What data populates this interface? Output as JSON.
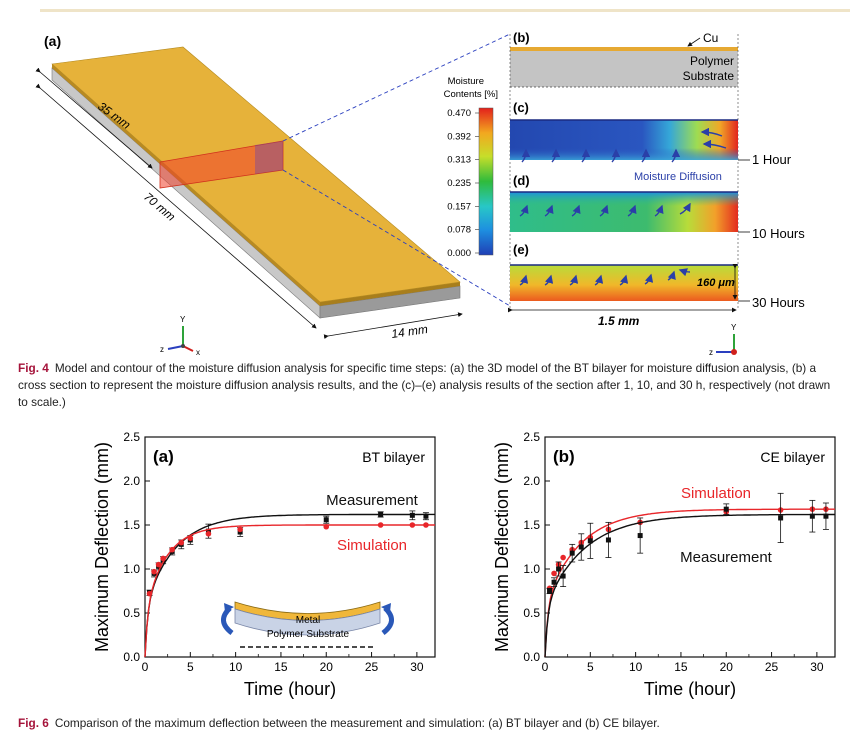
{
  "figure4": {
    "panel_a_label": "(a)",
    "panel_b_label": "(b)",
    "panel_c_label": "(c)",
    "panel_d_label": "(d)",
    "panel_e_label": "(e)",
    "dim_35": "35 mm",
    "dim_70": "70 mm",
    "dim_14": "14 mm",
    "dim_15": "1.5 mm",
    "dim_160": "160 μm",
    "cu_label": "Cu",
    "polymer_label_line1": "Polymer",
    "polymer_label_line2": "Substrate",
    "colorbar_title_line1": "Moisture",
    "colorbar_title_line2": "Contents [%]",
    "colorbar_ticks": [
      "0.470",
      "0.392",
      "0.313",
      "0.235",
      "0.157",
      "0.078",
      "0.000"
    ],
    "time_labels": [
      "1 Hour",
      "10 Hours",
      "30 Hours"
    ],
    "moisture_diffusion_label": "Moisture Diffusion",
    "axis_y": "Y",
    "axis_z": "z",
    "axis_x": "x",
    "caption_label": "Fig. 4",
    "caption_text": "Model and contour of the moisture diffusion analysis for specific time steps: (a) the 3D model of the BT bilayer for moisture diffusion analysis, (b) a cross section to represent the moisture diffusion analysis results, and the (c)–(e) analysis results of the section after 1, 10, and 30 h, respectively (not drawn to scale.)"
  },
  "figure6": {
    "caption_label": "Fig. 6",
    "caption_text": "Comparison of the maximum deflection between the measurement and simulation: (a) BT bilayer and (b) CE bilayer.",
    "inset_metal": "Metal",
    "inset_polymer": "Polymer Substrate"
  },
  "chart_data": [
    {
      "type": "line",
      "panel_label": "(a)",
      "title": "BT bilayer",
      "xlabel": "Time (hour)",
      "ylabel": "Maximum Deflection (mm)",
      "xlim": [
        0,
        32
      ],
      "ylim": [
        0,
        2.5
      ],
      "xticks": [
        0,
        5,
        10,
        15,
        20,
        25,
        30
      ],
      "yticks": [
        0.0,
        0.5,
        1.0,
        1.5,
        2.0,
        2.5
      ],
      "series": [
        {
          "name": "Measurement",
          "color": "#111111",
          "marker": "square",
          "x": [
            0.5,
            1,
            1.5,
            2,
            3,
            4,
            5,
            7,
            10.5,
            20,
            26,
            29.5,
            31
          ],
          "y": [
            0.73,
            0.95,
            1.03,
            1.1,
            1.2,
            1.28,
            1.33,
            1.43,
            1.42,
            1.56,
            1.62,
            1.61,
            1.6
          ],
          "err": [
            0.03,
            0.04,
            0.04,
            0.04,
            0.04,
            0.05,
            0.05,
            0.08,
            0.05,
            0.04,
            0.03,
            0.05,
            0.04
          ],
          "fit": {
            "a": 1.62,
            "k": 0.3
          }
        },
        {
          "name": "Simulation",
          "color": "#e8262a",
          "marker": "circle",
          "x": [
            0.5,
            1,
            1.5,
            2,
            3,
            4,
            5,
            7,
            10.5,
            20,
            26,
            29.5,
            31
          ],
          "y": [
            0.72,
            0.97,
            1.05,
            1.12,
            1.22,
            1.3,
            1.35,
            1.4,
            1.45,
            1.48,
            1.5,
            1.5,
            1.5
          ],
          "fit": {
            "a": 1.5,
            "k": 0.42
          }
        }
      ]
    },
    {
      "type": "line",
      "panel_label": "(b)",
      "title": "CE bilayer",
      "xlabel": "Time (hour)",
      "ylabel": "Maximum Deflection (mm)",
      "xlim": [
        0,
        32
      ],
      "ylim": [
        0,
        2.5
      ],
      "xticks": [
        0,
        5,
        10,
        15,
        20,
        25,
        30
      ],
      "yticks": [
        0.0,
        0.5,
        1.0,
        1.5,
        2.0,
        2.5
      ],
      "series": [
        {
          "name": "Simulation",
          "color": "#e8262a",
          "marker": "circle",
          "x": [
            0.5,
            1,
            1.5,
            2,
            3,
            4,
            5,
            7,
            10.5,
            20,
            26,
            29.5,
            31
          ],
          "y": [
            0.78,
            0.95,
            1.05,
            1.13,
            1.22,
            1.3,
            1.36,
            1.45,
            1.53,
            1.65,
            1.67,
            1.68,
            1.68
          ],
          "fit": {
            "a": 1.68,
            "k": 0.26
          }
        },
        {
          "name": "Measurement",
          "color": "#111111",
          "marker": "square",
          "x": [
            0.5,
            1,
            1.5,
            2,
            3,
            4,
            5,
            7,
            10.5,
            20,
            26,
            29.5,
            31
          ],
          "y": [
            0.75,
            0.85,
            1.0,
            0.92,
            1.18,
            1.25,
            1.32,
            1.33,
            1.38,
            1.68,
            1.58,
            1.6,
            1.6
          ],
          "err": [
            0.03,
            0.05,
            0.08,
            0.12,
            0.1,
            0.15,
            0.2,
            0.2,
            0.2,
            0.06,
            0.28,
            0.18,
            0.15
          ],
          "fit": {
            "a": 1.62,
            "k": 0.23
          }
        }
      ]
    }
  ]
}
